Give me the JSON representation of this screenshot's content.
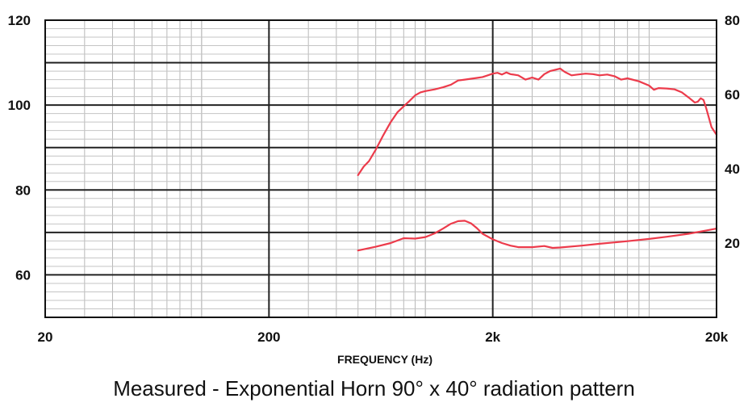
{
  "caption": "Measured - Exponential Horn 90° x 40° radiation pattern",
  "chart_data": {
    "type": "line",
    "xlabel": "FREQUENCY (Hz)",
    "xscale": "log",
    "xlim": [
      20,
      20000
    ],
    "ylim": [
      50,
      120
    ],
    "y2lim": [
      0,
      80
    ],
    "grid": true,
    "x_tick_labels": [
      {
        "value": 20,
        "label": "20"
      },
      {
        "value": 200,
        "label": "200"
      },
      {
        "value": 2000,
        "label": "2k"
      },
      {
        "value": 20000,
        "label": "20k"
      }
    ],
    "y_tick_labels": [
      {
        "value": 60,
        "label": "60"
      },
      {
        "value": 80,
        "label": "80"
      },
      {
        "value": 100,
        "label": "100"
      },
      {
        "value": 120,
        "label": "120"
      }
    ],
    "y2_tick_labels": [
      {
        "value": 20,
        "label": "20"
      },
      {
        "value": 40,
        "label": "40"
      },
      {
        "value": 60,
        "label": "60"
      },
      {
        "value": 80,
        "label": "80"
      }
    ],
    "series": [
      {
        "axis": "left",
        "color": "#ec3b4b",
        "points": [
          [
            500,
            83.5
          ],
          [
            530,
            85.5
          ],
          [
            560,
            86.8
          ],
          [
            600,
            89.5
          ],
          [
            650,
            93
          ],
          [
            700,
            96
          ],
          [
            750,
            98.3
          ],
          [
            800,
            99.7
          ],
          [
            850,
            101
          ],
          [
            900,
            102.3
          ],
          [
            950,
            103
          ],
          [
            1000,
            103.3
          ],
          [
            1100,
            103.7
          ],
          [
            1200,
            104.2
          ],
          [
            1300,
            104.8
          ],
          [
            1400,
            105.8
          ],
          [
            1500,
            106
          ],
          [
            1600,
            106.2
          ],
          [
            1700,
            106.4
          ],
          [
            1800,
            106.6
          ],
          [
            1900,
            107
          ],
          [
            2000,
            107.4
          ],
          [
            2100,
            107.6
          ],
          [
            2200,
            107.2
          ],
          [
            2300,
            107.7
          ],
          [
            2400,
            107.3
          ],
          [
            2600,
            107
          ],
          [
            2800,
            106
          ],
          [
            3000,
            106.5
          ],
          [
            3200,
            106
          ],
          [
            3400,
            107.3
          ],
          [
            3600,
            108
          ],
          [
            3800,
            108.3
          ],
          [
            4000,
            108.6
          ],
          [
            4200,
            107.8
          ],
          [
            4500,
            107
          ],
          [
            4800,
            107.2
          ],
          [
            5200,
            107.4
          ],
          [
            5600,
            107.3
          ],
          [
            6000,
            107
          ],
          [
            6500,
            107.2
          ],
          [
            7000,
            106.8
          ],
          [
            7500,
            106
          ],
          [
            8000,
            106.3
          ],
          [
            9000,
            105.6
          ],
          [
            10000,
            104.6
          ],
          [
            10500,
            103.6
          ],
          [
            11000,
            104
          ],
          [
            12000,
            103.9
          ],
          [
            13000,
            103.7
          ],
          [
            14000,
            103
          ],
          [
            15000,
            101.8
          ],
          [
            16000,
            100.6
          ],
          [
            16500,
            100.8
          ],
          [
            17000,
            101.6
          ],
          [
            17500,
            101.2
          ],
          [
            18000,
            99.2
          ],
          [
            19000,
            94.8
          ],
          [
            20000,
            93
          ]
        ]
      },
      {
        "axis": "right",
        "color": "#ec3b4b",
        "points": [
          [
            500,
            18
          ],
          [
            600,
            19
          ],
          [
            700,
            20
          ],
          [
            800,
            21.3
          ],
          [
            900,
            21.2
          ],
          [
            1000,
            21.6
          ],
          [
            1100,
            22.6
          ],
          [
            1200,
            23.9
          ],
          [
            1300,
            25.2
          ],
          [
            1400,
            25.9
          ],
          [
            1500,
            26
          ],
          [
            1600,
            25.3
          ],
          [
            1700,
            24
          ],
          [
            1800,
            22.5
          ],
          [
            2000,
            21
          ],
          [
            2200,
            20
          ],
          [
            2400,
            19.3
          ],
          [
            2600,
            18.9
          ],
          [
            3000,
            18.9
          ],
          [
            3400,
            19.2
          ],
          [
            3700,
            18.7
          ],
          [
            4000,
            18.8
          ],
          [
            5000,
            19.3
          ],
          [
            6000,
            19.8
          ],
          [
            8000,
            20.5
          ],
          [
            10000,
            21.1
          ],
          [
            12000,
            21.7
          ],
          [
            15000,
            22.5
          ],
          [
            18000,
            23.4
          ],
          [
            20000,
            23.9
          ]
        ]
      }
    ]
  }
}
